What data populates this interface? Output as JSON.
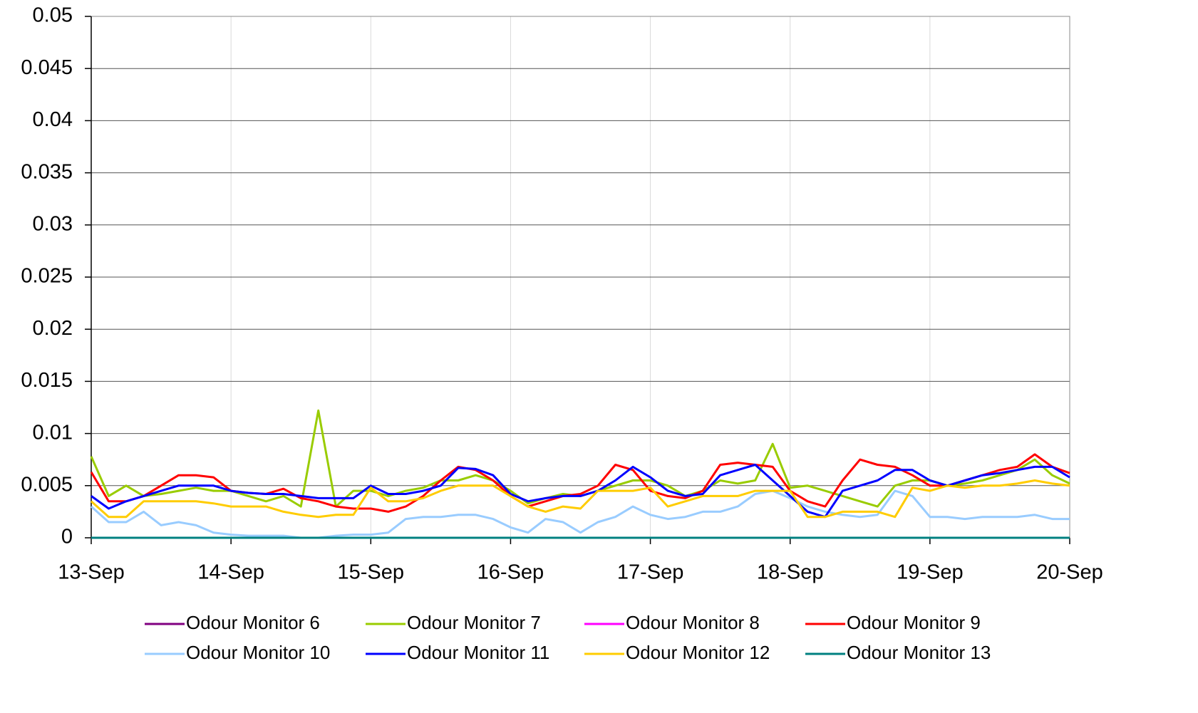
{
  "chart_data": {
    "type": "line",
    "xlim": [
      0,
      7
    ],
    "xticks": [
      {
        "value": 0,
        "label": "13-Sep"
      },
      {
        "value": 1,
        "label": "14-Sep"
      },
      {
        "value": 2,
        "label": "15-Sep"
      },
      {
        "value": 3,
        "label": "16-Sep"
      },
      {
        "value": 4,
        "label": "17-Sep"
      },
      {
        "value": 5,
        "label": "18-Sep"
      },
      {
        "value": 6,
        "label": "19-Sep"
      },
      {
        "value": 7,
        "label": "20-Sep"
      }
    ],
    "ylim": [
      0,
      0.05
    ],
    "yticks": [
      0,
      0.005,
      0.01,
      0.015,
      0.02,
      0.025,
      0.03,
      0.035,
      0.04,
      0.045,
      0.05
    ],
    "grid": true,
    "legend": "bottom",
    "x": [
      0,
      0.125,
      0.25,
      0.375,
      0.5,
      0.625,
      0.75,
      0.875,
      1,
      1.125,
      1.25,
      1.375,
      1.5,
      1.625,
      1.75,
      1.875,
      2,
      2.125,
      2.25,
      2.375,
      2.5,
      2.625,
      2.75,
      2.875,
      3,
      3.125,
      3.25,
      3.375,
      3.5,
      3.625,
      3.75,
      3.875,
      4,
      4.125,
      4.25,
      4.375,
      4.5,
      4.625,
      4.75,
      4.875,
      5,
      5.125,
      5.25,
      5.375,
      5.5,
      5.625,
      5.75,
      5.875,
      6,
      6.125,
      6.25,
      6.375,
      6.5,
      6.625,
      6.75,
      6.875,
      7
    ],
    "series": [
      {
        "name": "Odour Monitor 6",
        "color": "#800080",
        "values": [
          null,
          null,
          null,
          null,
          null,
          null,
          null,
          null,
          null,
          null,
          null,
          null,
          null,
          null,
          null,
          null,
          null,
          null,
          null,
          null,
          null,
          null,
          null,
          null,
          null,
          null,
          null,
          null,
          null,
          null,
          null,
          null,
          null,
          null,
          null,
          null,
          null,
          null,
          null,
          null,
          null,
          null,
          null,
          null,
          null,
          null,
          null,
          null,
          null,
          null,
          null,
          null,
          null,
          null,
          null,
          null,
          null
        ]
      },
      {
        "name": "Odour Monitor 7",
        "color": "#99cc00",
        "values": [
          0.0078,
          0.004,
          0.005,
          0.004,
          0.0042,
          0.0045,
          0.0048,
          0.0045,
          0.0045,
          0.004,
          0.0035,
          0.004,
          0.003,
          0.0122,
          0.003,
          0.0045,
          0.0045,
          0.004,
          0.0045,
          0.0048,
          0.0055,
          0.0055,
          0.006,
          0.0055,
          0.0045,
          0.0033,
          0.0038,
          0.0042,
          0.004,
          0.0045,
          0.005,
          0.0055,
          0.0055,
          0.005,
          0.004,
          0.0045,
          0.0055,
          0.0052,
          0.0055,
          0.009,
          0.0048,
          0.005,
          0.0045,
          0.004,
          0.0035,
          0.003,
          0.005,
          0.0055,
          0.0055,
          0.005,
          0.0052,
          0.0055,
          0.006,
          0.0065,
          0.0075,
          0.006,
          0.0052
        ]
      },
      {
        "name": "Odour Monitor 8",
        "color": "#ff00ff",
        "values": [
          null,
          null,
          null,
          null,
          null,
          null,
          null,
          null,
          null,
          null,
          null,
          null,
          null,
          null,
          null,
          null,
          null,
          null,
          null,
          null,
          null,
          null,
          null,
          null,
          null,
          null,
          null,
          null,
          null,
          null,
          null,
          null,
          null,
          null,
          null,
          null,
          null,
          null,
          null,
          null,
          null,
          null,
          null,
          null,
          null,
          null,
          null,
          null,
          null,
          null,
          null,
          null,
          null,
          null,
          null,
          null,
          null
        ]
      },
      {
        "name": "Odour Monitor 9",
        "color": "#ff0000",
        "values": [
          0.0063,
          0.0035,
          0.0035,
          0.004,
          0.005,
          0.006,
          0.006,
          0.0058,
          0.0045,
          0.0043,
          0.0042,
          0.0047,
          0.0038,
          0.0035,
          0.003,
          0.0028,
          0.0028,
          0.0025,
          0.003,
          0.004,
          0.0055,
          0.0068,
          0.0065,
          0.0055,
          0.004,
          0.003,
          0.0035,
          0.004,
          0.0042,
          0.005,
          0.007,
          0.0065,
          0.0045,
          0.004,
          0.0038,
          0.0045,
          0.007,
          0.0072,
          0.007,
          0.0068,
          0.0045,
          0.0035,
          0.003,
          0.0055,
          0.0075,
          0.007,
          0.0068,
          0.006,
          0.005,
          0.005,
          0.0055,
          0.006,
          0.0065,
          0.0068,
          0.008,
          0.0068,
          0.0062
        ]
      },
      {
        "name": "Odour Monitor 10",
        "color": "#99ccff",
        "values": [
          0.003,
          0.0015,
          0.0015,
          0.0025,
          0.0012,
          0.0015,
          0.0012,
          0.0005,
          0.0003,
          0.0002,
          0.0002,
          0.0002,
          0,
          0,
          0.0002,
          0.0003,
          0.0003,
          0.0005,
          0.0018,
          0.002,
          0.002,
          0.0022,
          0.0022,
          0.0018,
          0.001,
          0.0005,
          0.0018,
          0.0015,
          0.0005,
          0.0015,
          0.002,
          0.003,
          0.0022,
          0.0018,
          0.002,
          0.0025,
          0.0025,
          0.003,
          0.0042,
          0.0045,
          0.0038,
          0.003,
          0.0025,
          0.0022,
          0.002,
          0.0022,
          0.0045,
          0.004,
          0.002,
          0.002,
          0.0018,
          0.002,
          0.002,
          0.002,
          0.0022,
          0.0018,
          0.0018
        ]
      },
      {
        "name": "Odour Monitor 11",
        "color": "#0000ff",
        "values": [
          0.004,
          0.0028,
          0.0035,
          0.004,
          0.0045,
          0.005,
          0.005,
          0.005,
          0.0045,
          0.0043,
          0.0042,
          0.0042,
          0.004,
          0.0038,
          0.0038,
          0.0038,
          0.005,
          0.0042,
          0.0042,
          0.0045,
          0.005,
          0.0067,
          0.0066,
          0.006,
          0.0042,
          0.0035,
          0.0038,
          0.004,
          0.004,
          0.0045,
          0.0055,
          0.0068,
          0.0058,
          0.0045,
          0.004,
          0.0042,
          0.006,
          0.0065,
          0.007,
          0.0055,
          0.004,
          0.0025,
          0.002,
          0.0045,
          0.005,
          0.0055,
          0.0065,
          0.0065,
          0.0055,
          0.005,
          0.0055,
          0.006,
          0.0062,
          0.0065,
          0.0068,
          0.0068,
          0.0058
        ]
      },
      {
        "name": "Odour Monitor 12",
        "color": "#ffcc00",
        "values": [
          0.0035,
          0.002,
          0.002,
          0.0035,
          0.0035,
          0.0035,
          0.0035,
          0.0033,
          0.003,
          0.003,
          0.003,
          0.0025,
          0.0022,
          0.002,
          0.0022,
          0.0022,
          0.0048,
          0.0035,
          0.0035,
          0.0038,
          0.0045,
          0.005,
          0.005,
          0.005,
          0.004,
          0.003,
          0.0025,
          0.003,
          0.0028,
          0.0045,
          0.0045,
          0.0045,
          0.0048,
          0.003,
          0.0035,
          0.004,
          0.004,
          0.004,
          0.0045,
          0.0045,
          0.0045,
          0.002,
          0.002,
          0.0025,
          0.0025,
          0.0025,
          0.002,
          0.0048,
          0.0045,
          0.005,
          0.0048,
          0.005,
          0.005,
          0.0052,
          0.0055,
          0.0052,
          0.005
        ]
      },
      {
        "name": "Odour Monitor 13",
        "color": "#008080",
        "values": [
          0,
          0,
          0,
          0,
          0,
          0,
          0,
          0,
          0,
          0,
          0,
          0,
          0,
          0,
          0,
          0,
          0,
          0,
          0,
          0,
          0,
          0,
          0,
          0,
          0,
          0,
          0,
          0,
          0,
          0,
          0,
          0,
          0,
          0,
          0,
          0,
          0,
          0,
          0,
          0,
          0,
          0,
          0,
          0,
          0,
          0,
          0,
          0,
          0,
          0,
          0,
          0,
          0,
          0,
          0,
          0,
          0
        ]
      }
    ]
  }
}
